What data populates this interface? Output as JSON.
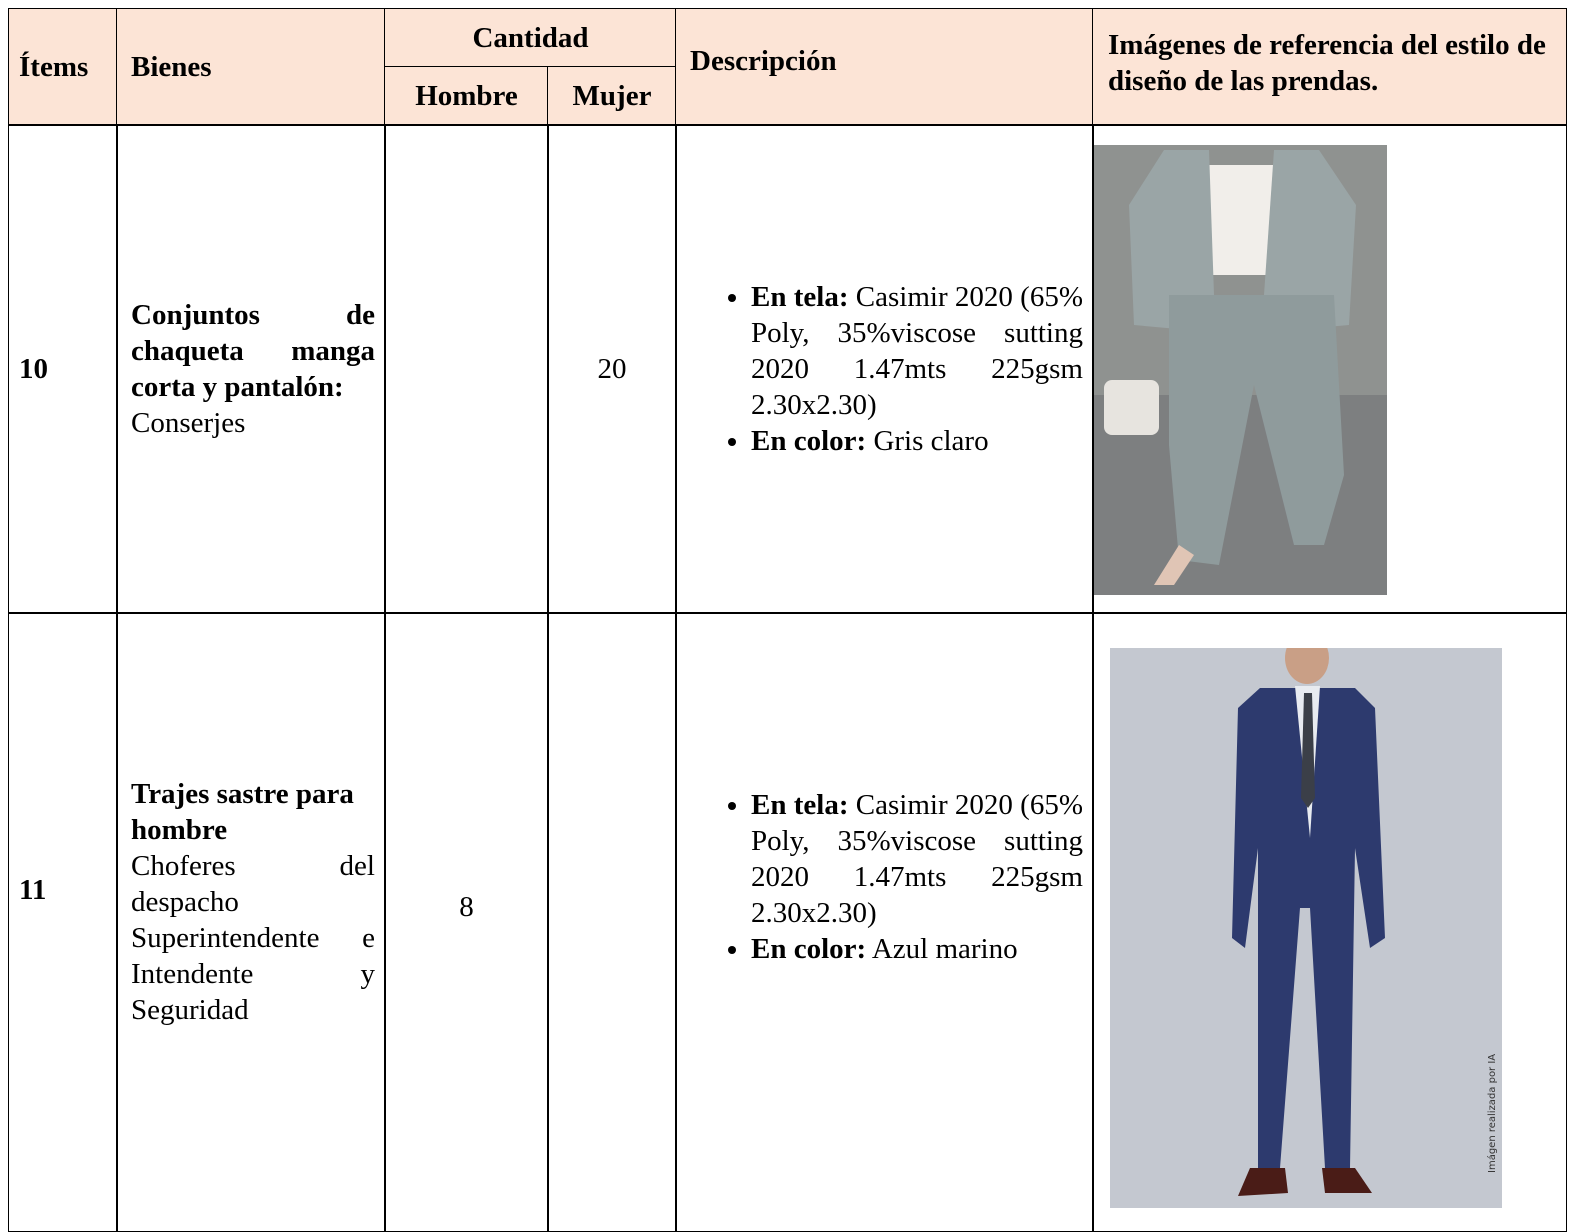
{
  "header": {
    "items": "Ítems",
    "goods": "Bienes",
    "quantity": "Cantidad",
    "men": "Hombre",
    "women": "Mujer",
    "description": "Descripción",
    "images": "Imágenes de referencia del estilo de diseño de las prendas."
  },
  "rows": [
    {
      "item": "10",
      "goods_title": "Conjuntos de chaqueta manga corta y pantalón:",
      "goods_detail": "Conserjes",
      "women": "20",
      "description": [
        {
          "label": "En tela:",
          "text": "Casimir 2020 (65% Poly, 35%viscose sutting 2020 1.47mts 225gsm 2.30x2.30)"
        },
        {
          "label": "En color:",
          "text": "Gris claro"
        }
      ]
    },
    {
      "item": "11",
      "goods_title": "Trajes sastre para hombre",
      "goods_detail": "Choferes del despacho Superintendente e Intendente y Seguridad",
      "men": "8",
      "description": [
        {
          "label": "En tela:",
          "text": "Casimir 2020 (65% Poly, 35%viscose sutting 2020 1.47mts 225gsm 2.30x2.30)"
        },
        {
          "label": "En color:",
          "text": "Azul marino"
        }
      ],
      "image_caption": "Imágen realizada por IA"
    }
  ]
}
